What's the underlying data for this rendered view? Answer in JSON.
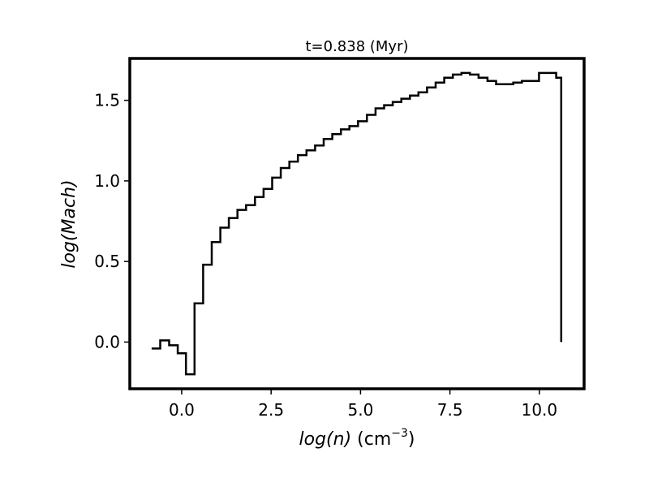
{
  "chart_data": {
    "type": "line",
    "style": "step",
    "title": "t=0.838 (Myr)",
    "xlabel": {
      "italic": "log(n)",
      "plain": " (cm",
      "sup": "−3",
      "close": ")"
    },
    "ylabel": "log(Mach)",
    "xlim": [
      -1.45,
      11.25
    ],
    "ylim": [
      -0.29,
      1.76
    ],
    "xticks": [
      0.0,
      2.5,
      5.0,
      7.5,
      10.0
    ],
    "xtick_labels": [
      "0.0",
      "2.5",
      "5.0",
      "7.5",
      "10.0"
    ],
    "yticks": [
      0.0,
      0.5,
      1.0,
      1.5
    ],
    "ytick_labels": [
      "0.0",
      "0.5",
      "1.0",
      "1.5"
    ],
    "grid": false,
    "line_color": "#000000",
    "bin_edges": [
      -0.84,
      -0.6,
      -0.35,
      -0.11,
      0.12,
      0.36,
      0.6,
      0.84,
      1.08,
      1.32,
      1.56,
      1.8,
      2.05,
      2.29,
      2.53,
      2.77,
      3.01,
      3.25,
      3.49,
      3.73,
      3.97,
      4.21,
      4.45,
      4.69,
      4.93,
      5.18,
      5.42,
      5.66,
      5.9,
      6.14,
      6.38,
      6.62,
      6.86,
      7.1,
      7.34,
      7.58,
      7.82,
      8.06,
      8.3,
      8.55,
      8.79,
      9.03,
      9.27,
      9.51,
      9.75,
      9.99,
      10.23,
      10.47,
      10.61
    ],
    "values": [
      -0.04,
      0.01,
      -0.02,
      -0.07,
      -0.2,
      0.24,
      0.48,
      0.62,
      0.71,
      0.77,
      0.82,
      0.85,
      0.9,
      0.95,
      1.02,
      1.08,
      1.12,
      1.16,
      1.19,
      1.22,
      1.26,
      1.29,
      1.32,
      1.34,
      1.37,
      1.41,
      1.45,
      1.47,
      1.49,
      1.51,
      1.53,
      1.55,
      1.58,
      1.61,
      1.64,
      1.66,
      1.67,
      1.66,
      1.64,
      1.62,
      1.6,
      1.6,
      1.61,
      1.62,
      1.62,
      1.67,
      1.67,
      1.64
    ],
    "final_drop_to": 0.0
  }
}
